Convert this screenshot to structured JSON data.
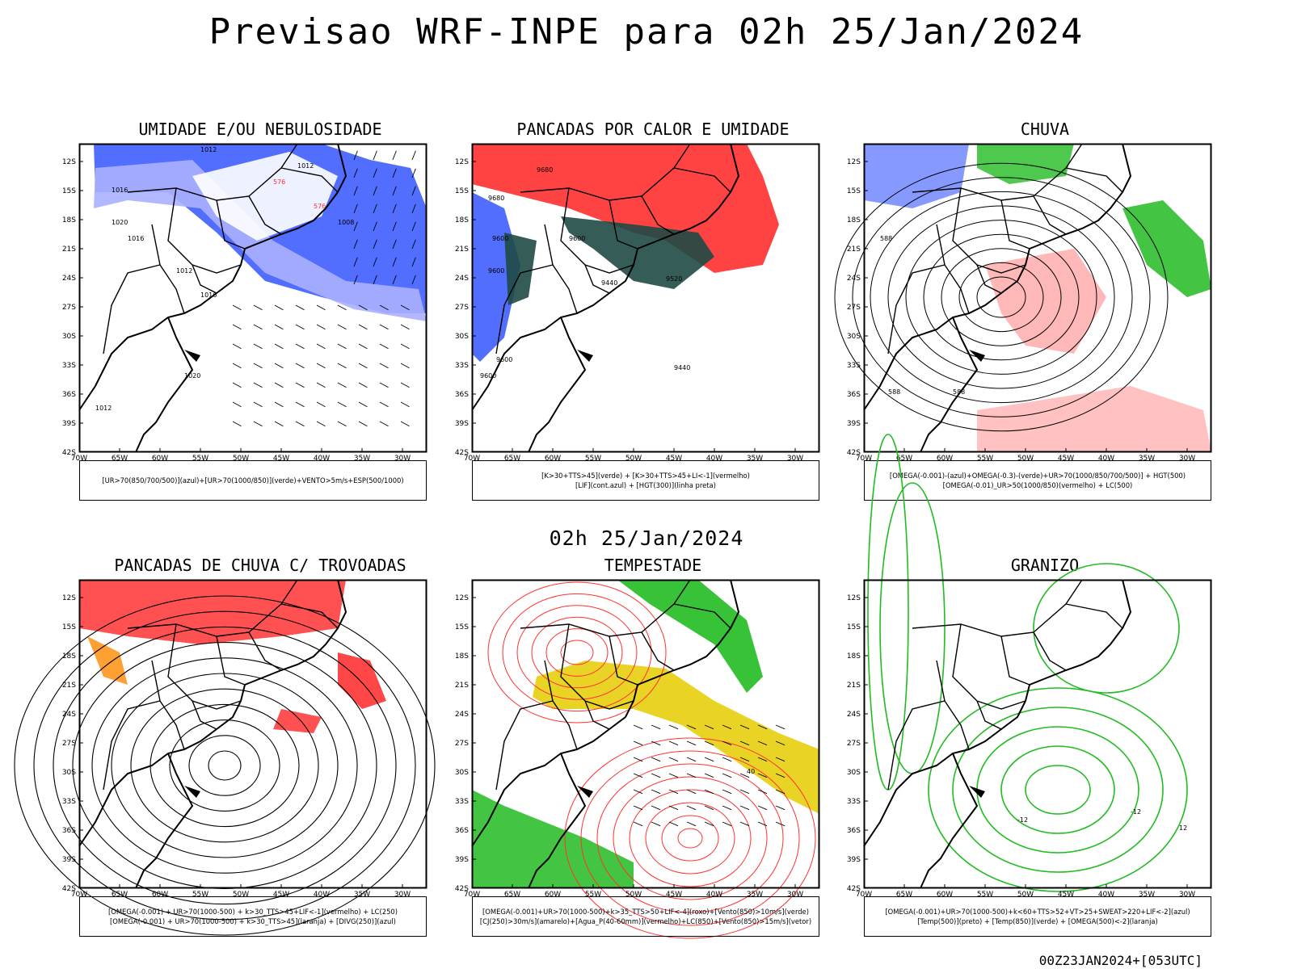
{
  "header": {
    "title": "Previsao WRF-INPE  para 02h 25/Jan/2024"
  },
  "middle_title": "02h 25/Jan/2024",
  "footer": "00Z23JAN2024+[053UTC]",
  "axes": {
    "lat_labels": [
      "12S",
      "15S",
      "18S",
      "21S",
      "24S",
      "27S",
      "30S",
      "33S",
      "36S",
      "39S",
      "42S"
    ],
    "lon_labels": [
      "70W",
      "65W",
      "60W",
      "55W",
      "50W",
      "45W",
      "40W",
      "35W",
      "30W"
    ]
  },
  "colors": {
    "blue": "#3355ff",
    "light_blue": "#aab0ff",
    "green": "#22bb22",
    "red": "#ff3333",
    "dark_teal": "#1f4a45",
    "yellow": "#e8d21a",
    "orange": "#ff8800"
  },
  "panels": [
    {
      "id": "umidade",
      "title": "UMIDADE E/OU NEBULOSIDADE",
      "legend": [
        "[UR>70(850/700/500)](azul)+[UR>70(1000/850)](verde)+VENTO>5m/s+ESP(500/1000)"
      ],
      "contour_labels": [
        "1012",
        "1012",
        "1016",
        "1020",
        "1016",
        "1012",
        "1016",
        "1020",
        "1012",
        "576",
        "576",
        "1008"
      ]
    },
    {
      "id": "pancadas",
      "title": "PANCADAS POR CALOR E UMIDADE",
      "legend": [
        "[K>30+TTS>45](verde) + [K>30+TTS>45+LI<-1](vermelho)",
        "[LIF](cont.azul) + [HGT(300)](linha preta)"
      ],
      "contour_labels": [
        "9680",
        "9680",
        "9600",
        "9600",
        "9440",
        "9520",
        "9600",
        "9440",
        "9600",
        "9600"
      ]
    },
    {
      "id": "chuva",
      "title": "CHUVA",
      "legend": [
        "[OMEGA(-0.001)-(azul)+OMEGA(-0.3)-(verde)+UR>70(1000/850/700/500)] + HGT(500)",
        "[OMEGA(-0.01)_UR>50(1000/850)(vermelho) + LC(500)"
      ],
      "contour_labels": [
        "588",
        "588",
        "588"
      ]
    },
    {
      "id": "trovoadas",
      "title": "PANCADAS DE CHUVA C/ TROVOADAS",
      "legend": [
        "[OMEGA(-0.001) + UR>70(1000-500) + k>30_TTS>45+LIF<-1](vermelho) + LC(250)",
        "[OMEGA(-0.001) + UR>70(1000-500) + k>30_TTS>45](laranja) + [DIVG(250)](azul)"
      ],
      "contour_labels": []
    },
    {
      "id": "tempestade",
      "title": "TEMPESTADE",
      "legend": [
        "[OMEGA(-0.001)+UR>70(1000-500)+k>35_TTS>50+LIF<-4](roxo)+[Vento(850)>10m/s](verde)",
        "[CJ(250)>30m/s](amarelo)+[Agua_P(40-60mm)](vermelho)+LC(850)+[Vento(850)>15m/s](vetor)"
      ],
      "contour_labels": [
        "40"
      ]
    },
    {
      "id": "granizo",
      "title": "GRANIZO",
      "legend": [
        "[OMEGA(-0.001)+UR>70(1000-500)+k<60+TTS>52+VT>25+SWEAT>220+LIF<-2](azul)",
        "[Temp(500)](preto) + [Temp(850)](verde) + [OMEGA(500)<-2](laranja)"
      ],
      "contour_labels": [
        "-12",
        "-12",
        "12"
      ]
    }
  ]
}
